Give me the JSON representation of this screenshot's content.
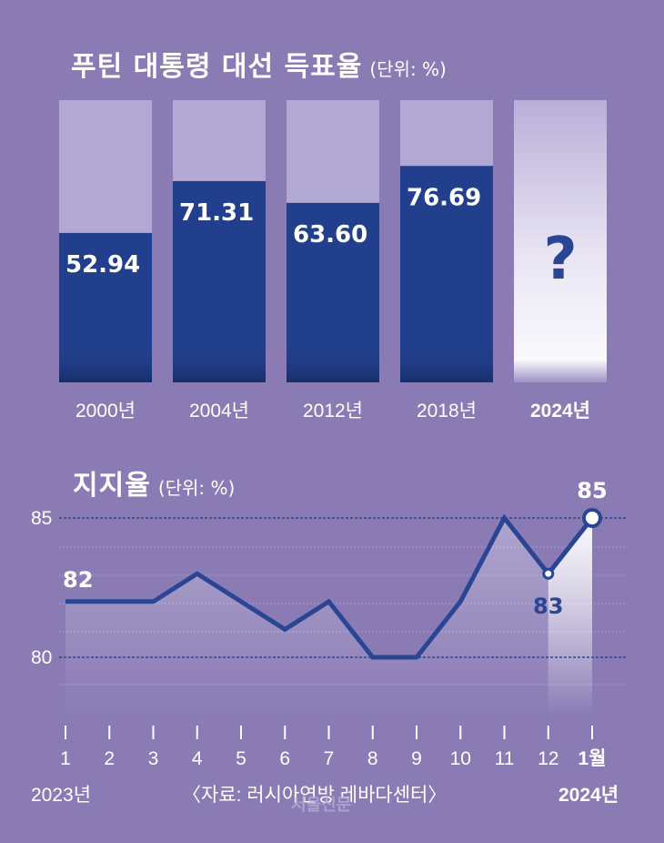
{
  "bar_chart": {
    "title": "푸틴 대통령 대선 득표율",
    "unit": "(단위: %)"
  },
  "line_chart": {
    "title": "지지율",
    "unit": "(단위: %)",
    "year_start": "2023년",
    "year_end": "2024년",
    "source": "〈자료: 러시아연방 레바다센터〉"
  },
  "watermark": "서울신문",
  "colors": {
    "background": "#8a7bb5",
    "bar_fill": "#213f8c",
    "bar_track": "#b2a8d4",
    "line": "#2a4594",
    "guide": "#2a4594"
  },
  "chart_data": [
    {
      "type": "bar",
      "title": "푸틴 대통령 대선 득표율",
      "unit": "%",
      "categories": [
        "2000년",
        "2004년",
        "2012년",
        "2018년",
        "2024년"
      ],
      "values": [
        52.94,
        71.31,
        63.6,
        76.69,
        null
      ],
      "value_labels": [
        "52.94",
        "71.31",
        "63.60",
        "76.69",
        "?"
      ],
      "ylim": [
        0,
        100
      ]
    },
    {
      "type": "line",
      "title": "지지율",
      "unit": "%",
      "x": [
        "1",
        "2",
        "3",
        "4",
        "5",
        "6",
        "7",
        "8",
        "9",
        "10",
        "11",
        "12",
        "1월"
      ],
      "values": [
        82,
        82,
        82,
        83,
        82,
        81,
        82,
        80,
        80,
        82,
        85,
        83,
        85
      ],
      "point_labels": [
        {
          "index": 0,
          "text": "82"
        },
        {
          "index": 11,
          "text": "83"
        },
        {
          "index": 12,
          "text": "85"
        }
      ],
      "y_ticks": [
        80,
        85
      ],
      "ylim": [
        77888,
        0
      ],
      "grid": true
    }
  ]
}
